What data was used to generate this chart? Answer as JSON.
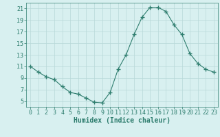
{
  "x": [
    0,
    1,
    2,
    3,
    4,
    5,
    6,
    7,
    8,
    9,
    10,
    11,
    12,
    13,
    14,
    15,
    16,
    17,
    18,
    19,
    20,
    21,
    22,
    23
  ],
  "y": [
    11,
    10,
    9.2,
    8.7,
    7.5,
    6.5,
    6.2,
    5.5,
    4.8,
    4.7,
    6.5,
    10.5,
    13,
    16.5,
    19.5,
    21.2,
    21.2,
    20.5,
    18.2,
    16.5,
    13.2,
    11.5,
    10.5,
    10
  ],
  "line_color": "#2e7d6e",
  "marker": "+",
  "marker_size": 4,
  "bg_color": "#d8f0f0",
  "grid_color": "#b8d8d8",
  "xlabel": "Humidex (Indice chaleur)",
  "xlim": [
    -0.5,
    23.5
  ],
  "ylim": [
    4,
    22
  ],
  "yticks": [
    5,
    7,
    9,
    11,
    13,
    15,
    17,
    19,
    21
  ],
  "xticks": [
    0,
    1,
    2,
    3,
    4,
    5,
    6,
    7,
    8,
    9,
    10,
    11,
    12,
    13,
    14,
    15,
    16,
    17,
    18,
    19,
    20,
    21,
    22,
    23
  ],
  "tick_color": "#2e7d6e",
  "xlabel_color": "#2e7d6e",
  "xlabel_fontsize": 7,
  "tick_fontsize": 6,
  "linewidth": 0.8,
  "marker_color": "#2e7d6e"
}
